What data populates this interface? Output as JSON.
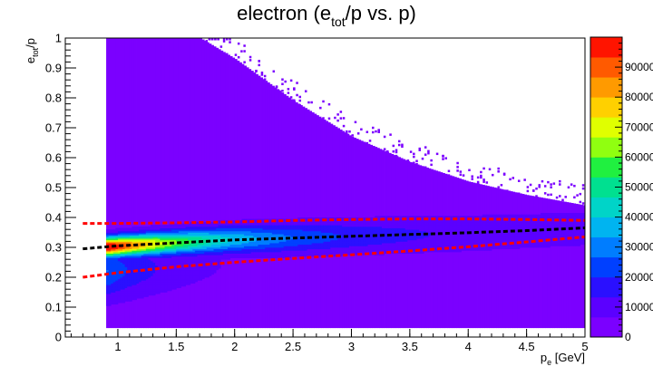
{
  "chart_data": {
    "type": "heatmap",
    "title": {
      "main": "electron (e",
      "sub": "tot",
      "rest": "/p vs. p)"
    },
    "xlabel": {
      "main": "p",
      "sub": "e",
      "rest": " [GeV]"
    },
    "ylabel": {
      "main": "e",
      "sub": "tot",
      "rest": "/p"
    },
    "xlim": [
      0.55,
      5.0
    ],
    "ylim": [
      0,
      1
    ],
    "x_ticks": [
      {
        "value": 1,
        "label": "1"
      },
      {
        "value": 1.5,
        "label": "1.5"
      },
      {
        "value": 2,
        "label": "2"
      },
      {
        "value": 2.5,
        "label": "2.5"
      },
      {
        "value": 3,
        "label": "3"
      },
      {
        "value": 3.5,
        "label": "3.5"
      },
      {
        "value": 4,
        "label": "4"
      },
      {
        "value": 4.5,
        "label": "4.5"
      },
      {
        "value": 5,
        "label": "5"
      }
    ],
    "y_ticks": [
      {
        "value": 0,
        "label": "0"
      },
      {
        "value": 0.1,
        "label": "0.1"
      },
      {
        "value": 0.2,
        "label": "0.2"
      },
      {
        "value": 0.3,
        "label": "0.3"
      },
      {
        "value": 0.4,
        "label": "0.4"
      },
      {
        "value": 0.5,
        "label": "0.5"
      },
      {
        "value": 0.6,
        "label": "0.6"
      },
      {
        "value": 0.7,
        "label": "0.7"
      },
      {
        "value": 0.8,
        "label": "0.8"
      },
      {
        "value": 0.9,
        "label": "0.9"
      },
      {
        "value": 1,
        "label": "1"
      }
    ],
    "colorbar": {
      "zlim": [
        0,
        100000
      ],
      "ticks": [
        {
          "value": 0,
          "label": "0"
        },
        {
          "value": 10000,
          "label": "10000"
        },
        {
          "value": 20000,
          "label": "20000"
        },
        {
          "value": 30000,
          "label": "30000"
        },
        {
          "value": 40000,
          "label": "40000"
        },
        {
          "value": 50000,
          "label": "50000"
        },
        {
          "value": 60000,
          "label": "60000"
        },
        {
          "value": 70000,
          "label": "70000"
        },
        {
          "value": 80000,
          "label": "80000"
        },
        {
          "value": 90000,
          "label": "90000"
        }
      ],
      "colors": [
        "#7b00ff",
        "#5b00ff",
        "#2a10ff",
        "#0040ff",
        "#007dff",
        "#00b4f0",
        "#00d4c8",
        "#00e090",
        "#20f040",
        "#90ff10",
        "#e0ff00",
        "#ffd000",
        "#ff9a00",
        "#ff5a00",
        "#ff1400"
      ]
    },
    "populated_region": {
      "x_min": 0.9,
      "x_max": 5.0,
      "upper_edge": [
        {
          "x": 0.9,
          "y": 1.0
        },
        {
          "x": 1.7,
          "y": 1.0
        },
        {
          "x": 2.0,
          "y": 0.93
        },
        {
          "x": 2.5,
          "y": 0.79
        },
        {
          "x": 3.0,
          "y": 0.67
        },
        {
          "x": 3.5,
          "y": 0.585
        },
        {
          "x": 4.0,
          "y": 0.52
        },
        {
          "x": 4.5,
          "y": 0.475
        },
        {
          "x": 5.0,
          "y": 0.44
        }
      ],
      "lower_edge_y": 0.03
    },
    "density_band": {
      "mean": [
        {
          "x": 0.9,
          "y": 0.3
        },
        {
          "x": 1.5,
          "y": 0.315
        },
        {
          "x": 2.0,
          "y": 0.325
        },
        {
          "x": 3.0,
          "y": 0.335
        },
        {
          "x": 4.0,
          "y": 0.345
        },
        {
          "x": 5.0,
          "y": 0.36
        }
      ],
      "peak_x": 1.0
    },
    "series": [
      {
        "style": "dashed-black",
        "color": "#000000",
        "points": [
          {
            "x": 0.7,
            "y": 0.295
          },
          {
            "x": 1.0,
            "y": 0.305
          },
          {
            "x": 1.5,
            "y": 0.315
          },
          {
            "x": 2.0,
            "y": 0.325
          },
          {
            "x": 2.5,
            "y": 0.331
          },
          {
            "x": 3.0,
            "y": 0.337
          },
          {
            "x": 3.5,
            "y": 0.343
          },
          {
            "x": 4.0,
            "y": 0.349
          },
          {
            "x": 4.5,
            "y": 0.356
          },
          {
            "x": 5.0,
            "y": 0.365
          }
        ]
      },
      {
        "style": "dashed-red",
        "color": "#ff0000",
        "points": [
          {
            "x": 0.7,
            "y": 0.38
          },
          {
            "x": 1.0,
            "y": 0.38
          },
          {
            "x": 1.5,
            "y": 0.382
          },
          {
            "x": 2.0,
            "y": 0.385
          },
          {
            "x": 2.5,
            "y": 0.39
          },
          {
            "x": 3.0,
            "y": 0.393
          },
          {
            "x": 3.5,
            "y": 0.395
          },
          {
            "x": 4.0,
            "y": 0.395
          },
          {
            "x": 4.5,
            "y": 0.393
          },
          {
            "x": 5.0,
            "y": 0.39
          }
        ]
      },
      {
        "style": "dashed-red",
        "color": "#ff0000",
        "points": [
          {
            "x": 0.7,
            "y": 0.2
          },
          {
            "x": 1.0,
            "y": 0.215
          },
          {
            "x": 1.5,
            "y": 0.235
          },
          {
            "x": 2.0,
            "y": 0.25
          },
          {
            "x": 2.5,
            "y": 0.263
          },
          {
            "x": 3.0,
            "y": 0.275
          },
          {
            "x": 3.5,
            "y": 0.288
          },
          {
            "x": 4.0,
            "y": 0.302
          },
          {
            "x": 4.5,
            "y": 0.318
          },
          {
            "x": 5.0,
            "y": 0.335
          }
        ]
      }
    ]
  }
}
